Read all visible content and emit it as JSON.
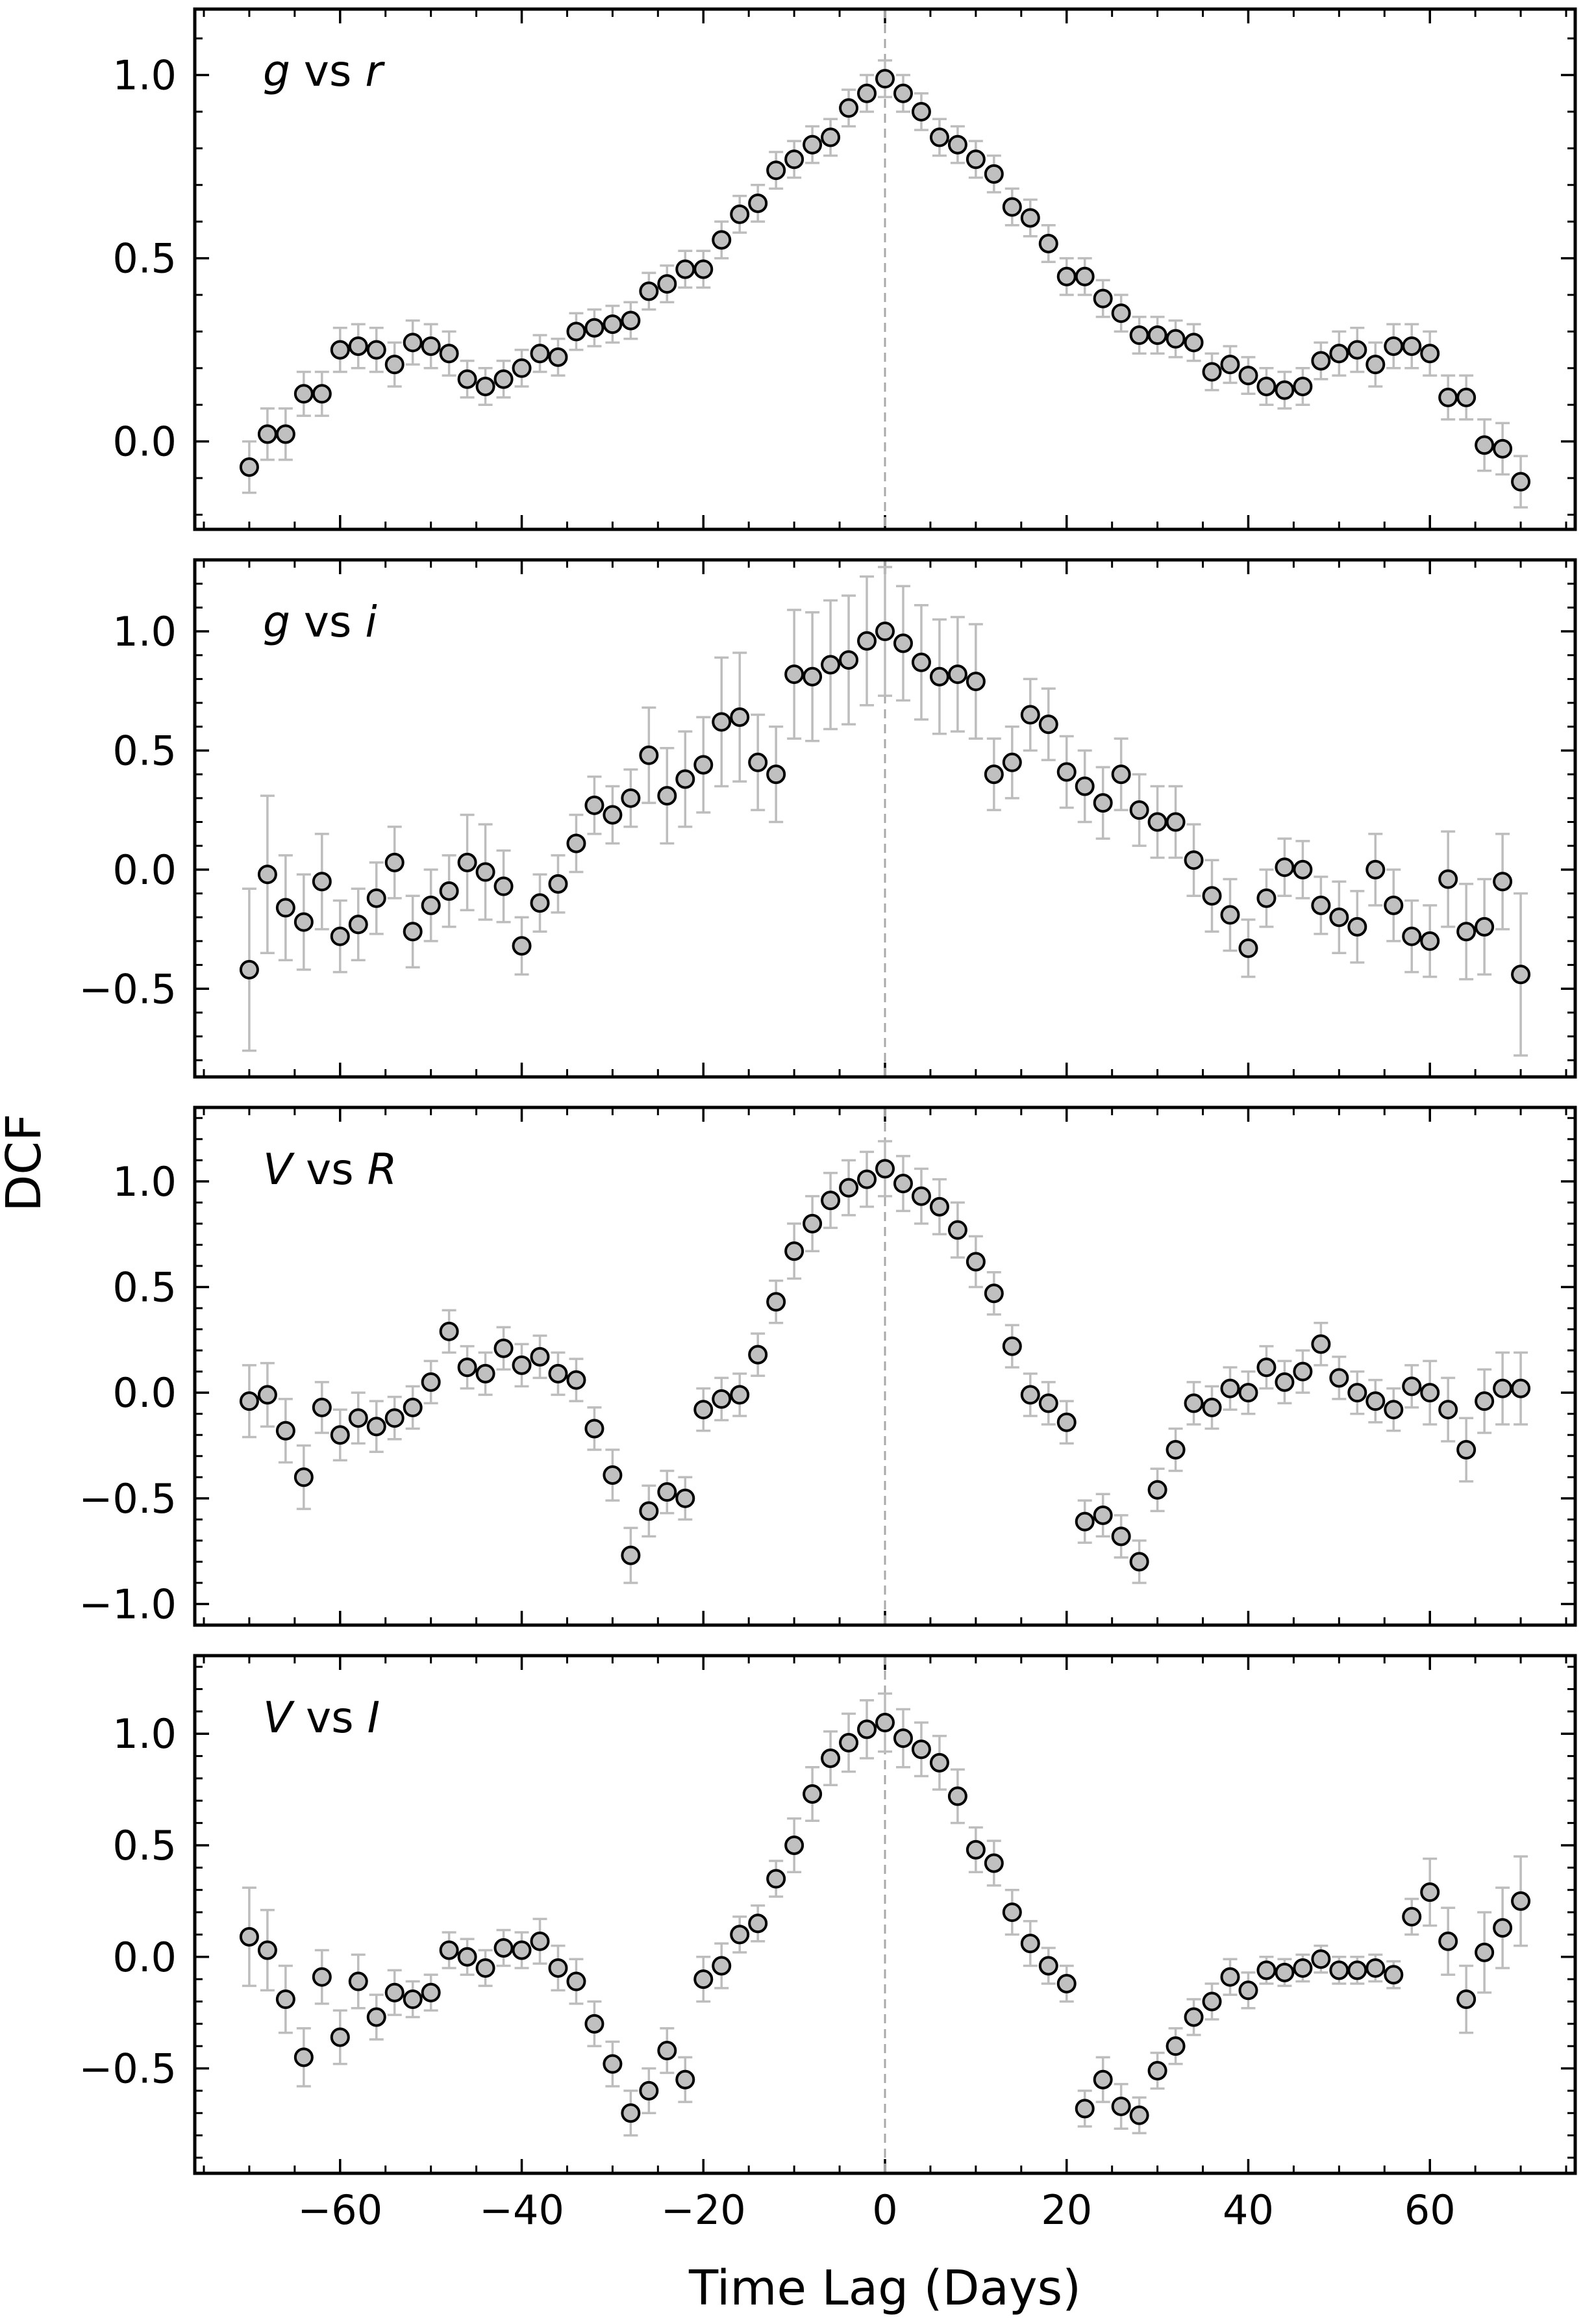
{
  "figure": {
    "ylabel": "DCF",
    "xlabel": "Time Lag (Days)"
  },
  "chart_data": [
    {
      "type": "scatter",
      "label": {
        "italic1": "g",
        "mid": " vs ",
        "italic2": "r"
      },
      "xlim": [
        -76,
        76
      ],
      "ylim": [
        -0.24,
        1.18
      ],
      "yticks": [
        0.0,
        0.5,
        1.0
      ],
      "ytick_labels": [
        "0.0",
        "0.5",
        "1.0"
      ],
      "xticks": [
        -60,
        -40,
        -20,
        0,
        20,
        40,
        60
      ],
      "zero_line": 0,
      "marker_color": "#c0c0c0",
      "errorbar_color": "#bdbdbd",
      "x": [
        -70,
        -68,
        -66,
        -64,
        -62,
        -60,
        -58,
        -56,
        -54,
        -52,
        -50,
        -48,
        -46,
        -44,
        -42,
        -40,
        -38,
        -36,
        -34,
        -32,
        -30,
        -28,
        -26,
        -24,
        -22,
        -20,
        -18,
        -16,
        -14,
        -12,
        -10,
        -8,
        -6,
        -4,
        -2,
        0,
        2,
        4,
        6,
        8,
        10,
        12,
        14,
        16,
        18,
        20,
        22,
        24,
        26,
        28,
        30,
        32,
        34,
        36,
        38,
        40,
        42,
        44,
        46,
        48,
        50,
        52,
        54,
        56,
        58,
        60,
        62,
        64,
        66,
        68,
        70
      ],
      "y": [
        -0.07,
        0.02,
        0.02,
        0.13,
        0.13,
        0.25,
        0.26,
        0.25,
        0.21,
        0.27,
        0.26,
        0.24,
        0.17,
        0.15,
        0.17,
        0.2,
        0.24,
        0.23,
        0.3,
        0.31,
        0.32,
        0.33,
        0.41,
        0.43,
        0.47,
        0.47,
        0.55,
        0.62,
        0.65,
        0.74,
        0.77,
        0.81,
        0.83,
        0.91,
        0.95,
        0.99,
        0.95,
        0.9,
        0.83,
        0.81,
        0.77,
        0.73,
        0.64,
        0.61,
        0.54,
        0.45,
        0.45,
        0.39,
        0.35,
        0.29,
        0.29,
        0.28,
        0.27,
        0.19,
        0.21,
        0.18,
        0.15,
        0.14,
        0.15,
        0.22,
        0.24,
        0.25,
        0.21,
        0.26,
        0.26,
        0.24,
        0.12,
        0.12,
        -0.01,
        -0.02,
        -0.11
      ],
      "yerr": [
        0.07,
        0.07,
        0.07,
        0.06,
        0.06,
        0.06,
        0.06,
        0.06,
        0.06,
        0.06,
        0.06,
        0.06,
        0.05,
        0.05,
        0.05,
        0.05,
        0.05,
        0.05,
        0.05,
        0.05,
        0.05,
        0.05,
        0.05,
        0.05,
        0.05,
        0.05,
        0.05,
        0.05,
        0.05,
        0.05,
        0.05,
        0.05,
        0.05,
        0.05,
        0.05,
        0.05,
        0.05,
        0.05,
        0.05,
        0.05,
        0.05,
        0.05,
        0.05,
        0.05,
        0.05,
        0.05,
        0.05,
        0.05,
        0.05,
        0.05,
        0.05,
        0.05,
        0.05,
        0.05,
        0.05,
        0.05,
        0.05,
        0.05,
        0.05,
        0.05,
        0.06,
        0.06,
        0.06,
        0.06,
        0.06,
        0.06,
        0.06,
        0.06,
        0.07,
        0.07,
        0.07
      ]
    },
    {
      "type": "scatter",
      "label": {
        "italic1": "g",
        "mid": " vs ",
        "italic2": "i"
      },
      "xlim": [
        -76,
        76
      ],
      "ylim": [
        -0.87,
        1.3
      ],
      "yticks": [
        -0.5,
        0.0,
        0.5,
        1.0
      ],
      "ytick_labels": [
        "−0.5",
        "0.0",
        "0.5",
        "1.0"
      ],
      "xticks": [
        -60,
        -40,
        -20,
        0,
        20,
        40,
        60
      ],
      "zero_line": 0,
      "marker_color": "#c0c0c0",
      "errorbar_color": "#bdbdbd",
      "x": [
        -70,
        -68,
        -66,
        -64,
        -62,
        -60,
        -58,
        -56,
        -54,
        -52,
        -50,
        -48,
        -46,
        -44,
        -42,
        -40,
        -38,
        -36,
        -34,
        -32,
        -30,
        -28,
        -26,
        -24,
        -22,
        -20,
        -18,
        -16,
        -14,
        -12,
        -10,
        -8,
        -6,
        -4,
        -2,
        0,
        2,
        4,
        6,
        8,
        10,
        12,
        14,
        16,
        18,
        20,
        22,
        24,
        26,
        28,
        30,
        32,
        34,
        36,
        38,
        40,
        42,
        44,
        46,
        48,
        50,
        52,
        54,
        56,
        58,
        60,
        62,
        64,
        66,
        68,
        70
      ],
      "y": [
        -0.42,
        -0.02,
        -0.16,
        -0.22,
        -0.05,
        -0.28,
        -0.23,
        -0.12,
        0.03,
        -0.26,
        -0.15,
        -0.09,
        0.03,
        -0.01,
        -0.07,
        -0.32,
        -0.14,
        -0.06,
        0.11,
        0.27,
        0.23,
        0.3,
        0.48,
        0.31,
        0.38,
        0.44,
        0.62,
        0.64,
        0.45,
        0.4,
        0.82,
        0.81,
        0.86,
        0.88,
        0.96,
        1.0,
        0.95,
        0.87,
        0.81,
        0.82,
        0.79,
        0.4,
        0.45,
        0.65,
        0.61,
        0.41,
        0.35,
        0.28,
        0.4,
        0.25,
        0.2,
        0.2,
        0.04,
        -0.11,
        -0.19,
        -0.33,
        -0.12,
        0.01,
        0.0,
        -0.15,
        -0.2,
        -0.24,
        0.0,
        -0.15,
        -0.28,
        -0.3,
        -0.04,
        -0.26,
        -0.24,
        -0.05,
        -0.44
      ],
      "yerr": [
        0.34,
        0.33,
        0.22,
        0.2,
        0.2,
        0.15,
        0.15,
        0.15,
        0.15,
        0.15,
        0.15,
        0.15,
        0.2,
        0.2,
        0.15,
        0.12,
        0.12,
        0.12,
        0.12,
        0.12,
        0.12,
        0.12,
        0.2,
        0.2,
        0.2,
        0.2,
        0.27,
        0.27,
        0.2,
        0.2,
        0.27,
        0.27,
        0.27,
        0.27,
        0.27,
        0.27,
        0.24,
        0.24,
        0.24,
        0.24,
        0.24,
        0.15,
        0.15,
        0.15,
        0.15,
        0.15,
        0.15,
        0.15,
        0.15,
        0.15,
        0.15,
        0.15,
        0.15,
        0.15,
        0.15,
        0.12,
        0.12,
        0.12,
        0.12,
        0.12,
        0.15,
        0.15,
        0.15,
        0.15,
        0.15,
        0.15,
        0.2,
        0.2,
        0.2,
        0.2,
        0.34
      ]
    },
    {
      "type": "scatter",
      "label": {
        "italic1": "V",
        "mid": " vs ",
        "italic2": "R"
      },
      "xlim": [
        -76,
        76
      ],
      "ylim": [
        -1.1,
        1.35
      ],
      "yticks": [
        -1.0,
        -0.5,
        0.0,
        0.5,
        1.0
      ],
      "ytick_labels": [
        "−1.0",
        "−0.5",
        "0.0",
        "0.5",
        "1.0"
      ],
      "xticks": [
        -60,
        -40,
        -20,
        0,
        20,
        40,
        60
      ],
      "zero_line": 0,
      "marker_color": "#c0c0c0",
      "errorbar_color": "#bdbdbd",
      "x": [
        -70,
        -68,
        -66,
        -64,
        -62,
        -60,
        -58,
        -56,
        -54,
        -52,
        -50,
        -48,
        -46,
        -44,
        -42,
        -40,
        -38,
        -36,
        -34,
        -32,
        -30,
        -28,
        -26,
        -24,
        -22,
        -20,
        -18,
        -16,
        -14,
        -12,
        -10,
        -8,
        -6,
        -4,
        -2,
        0,
        2,
        4,
        6,
        8,
        10,
        12,
        14,
        16,
        18,
        20,
        22,
        24,
        26,
        28,
        30,
        32,
        34,
        36,
        38,
        40,
        42,
        44,
        46,
        48,
        50,
        52,
        54,
        56,
        58,
        60,
        62,
        64,
        66,
        68,
        70
      ],
      "y": [
        -0.04,
        -0.01,
        -0.18,
        -0.4,
        -0.07,
        -0.2,
        -0.12,
        -0.16,
        -0.12,
        -0.07,
        0.05,
        0.29,
        0.12,
        0.09,
        0.21,
        0.13,
        0.17,
        0.09,
        0.06,
        -0.17,
        -0.39,
        -0.77,
        -0.56,
        -0.47,
        -0.5,
        -0.08,
        -0.03,
        -0.01,
        0.18,
        0.43,
        0.67,
        0.8,
        0.91,
        0.97,
        1.01,
        1.06,
        0.99,
        0.93,
        0.88,
        0.77,
        0.62,
        0.47,
        0.22,
        -0.01,
        -0.05,
        -0.14,
        -0.61,
        -0.58,
        -0.68,
        -0.8,
        -0.46,
        -0.27,
        -0.05,
        -0.07,
        0.02,
        0.0,
        0.12,
        0.05,
        0.1,
        0.23,
        0.07,
        0.0,
        -0.04,
        -0.08,
        0.03,
        0.0,
        -0.08,
        -0.27,
        -0.04,
        0.02,
        0.02
      ],
      "yerr": [
        0.17,
        0.15,
        0.15,
        0.15,
        0.12,
        0.12,
        0.12,
        0.12,
        0.1,
        0.1,
        0.1,
        0.1,
        0.1,
        0.1,
        0.1,
        0.1,
        0.1,
        0.1,
        0.1,
        0.1,
        0.12,
        0.13,
        0.12,
        0.1,
        0.1,
        0.1,
        0.1,
        0.1,
        0.1,
        0.1,
        0.13,
        0.13,
        0.13,
        0.13,
        0.13,
        0.13,
        0.13,
        0.13,
        0.13,
        0.13,
        0.12,
        0.1,
        0.1,
        0.1,
        0.1,
        0.1,
        0.1,
        0.1,
        0.1,
        0.1,
        0.1,
        0.1,
        0.1,
        0.1,
        0.1,
        0.1,
        0.1,
        0.1,
        0.1,
        0.1,
        0.1,
        0.1,
        0.1,
        0.1,
        0.1,
        0.15,
        0.15,
        0.15,
        0.15,
        0.17,
        0.17
      ]
    },
    {
      "type": "scatter",
      "label": {
        "italic1": "V",
        "mid": " vs ",
        "italic2": "I"
      },
      "xlim": [
        -76,
        76
      ],
      "ylim": [
        -0.97,
        1.35
      ],
      "yticks": [
        -0.5,
        0.0,
        0.5,
        1.0
      ],
      "ytick_labels": [
        "−0.5",
        "0.0",
        "0.5",
        "1.0"
      ],
      "xticks": [
        -60,
        -40,
        -20,
        0,
        20,
        40,
        60
      ],
      "xtick_labels": [
        "−60",
        "−40",
        "−20",
        "0",
        "20",
        "40",
        "60"
      ],
      "zero_line": 0,
      "marker_color": "#c0c0c0",
      "errorbar_color": "#bdbdbd",
      "x": [
        -70,
        -68,
        -66,
        -64,
        -62,
        -60,
        -58,
        -56,
        -54,
        -52,
        -50,
        -48,
        -46,
        -44,
        -42,
        -40,
        -38,
        -36,
        -34,
        -32,
        -30,
        -28,
        -26,
        -24,
        -22,
        -20,
        -18,
        -16,
        -14,
        -12,
        -10,
        -8,
        -6,
        -4,
        -2,
        0,
        2,
        4,
        6,
        8,
        10,
        12,
        14,
        16,
        18,
        20,
        22,
        24,
        26,
        28,
        30,
        32,
        34,
        36,
        38,
        40,
        42,
        44,
        46,
        48,
        50,
        52,
        54,
        56,
        58,
        60,
        62,
        64,
        66,
        68,
        70
      ],
      "y": [
        0.09,
        0.03,
        -0.19,
        -0.45,
        -0.09,
        -0.36,
        -0.11,
        -0.27,
        -0.16,
        -0.19,
        -0.16,
        0.03,
        0.0,
        -0.05,
        0.04,
        0.03,
        0.07,
        -0.05,
        -0.11,
        -0.3,
        -0.48,
        -0.7,
        -0.6,
        -0.42,
        -0.55,
        -0.1,
        -0.04,
        0.1,
        0.15,
        0.35,
        0.5,
        0.73,
        0.89,
        0.96,
        1.02,
        1.05,
        0.98,
        0.93,
        0.87,
        0.72,
        0.48,
        0.42,
        0.2,
        0.06,
        -0.04,
        -0.12,
        -0.68,
        -0.55,
        -0.67,
        -0.71,
        -0.51,
        -0.4,
        -0.27,
        -0.2,
        -0.09,
        -0.15,
        -0.06,
        -0.07,
        -0.05,
        -0.01,
        -0.06,
        -0.06,
        -0.05,
        -0.08,
        0.18,
        0.29,
        0.07,
        -0.19,
        0.02,
        0.13,
        0.25
      ],
      "yerr": [
        0.22,
        0.18,
        0.15,
        0.13,
        0.12,
        0.12,
        0.12,
        0.1,
        0.1,
        0.08,
        0.08,
        0.08,
        0.08,
        0.08,
        0.08,
        0.08,
        0.1,
        0.1,
        0.1,
        0.1,
        0.1,
        0.1,
        0.1,
        0.1,
        0.1,
        0.1,
        0.1,
        0.08,
        0.08,
        0.08,
        0.12,
        0.12,
        0.12,
        0.13,
        0.13,
        0.13,
        0.13,
        0.12,
        0.12,
        0.12,
        0.1,
        0.1,
        0.1,
        0.1,
        0.08,
        0.08,
        0.08,
        0.1,
        0.1,
        0.08,
        0.08,
        0.08,
        0.08,
        0.08,
        0.08,
        0.08,
        0.06,
        0.06,
        0.06,
        0.06,
        0.06,
        0.06,
        0.06,
        0.06,
        0.08,
        0.15,
        0.15,
        0.15,
        0.18,
        0.18,
        0.2
      ]
    }
  ]
}
